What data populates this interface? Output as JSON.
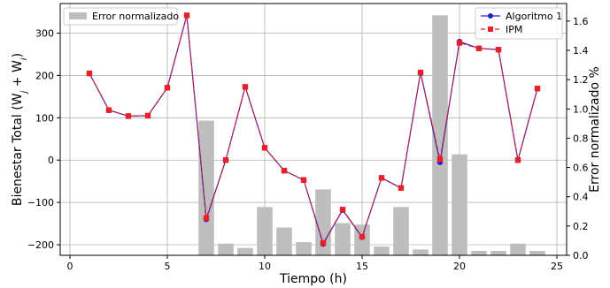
{
  "chart_data": {
    "type": "bar+line",
    "xlabel": "Tiempo (h)",
    "ylabel_left": "Bienestar Total (W_j + W_i)",
    "ylabel_right": "Error normalizado %",
    "xlim": [
      -0.5,
      25.5
    ],
    "ylim_left": [
      -225,
      370
    ],
    "ylim_right": [
      0,
      1.72
    ],
    "xticks": [
      0,
      5,
      10,
      15,
      20,
      25
    ],
    "yticks_left": [
      -200,
      -100,
      0,
      100,
      200,
      300
    ],
    "yticks_right": [
      0.0,
      0.2,
      0.4,
      0.6,
      0.8,
      1.0,
      1.2,
      1.4,
      1.6
    ],
    "grid": true,
    "bar_series": {
      "name": "Error normalizado",
      "color": "#bebebe",
      "x": [
        1,
        2,
        3,
        4,
        5,
        6,
        7,
        8,
        9,
        10,
        11,
        12,
        13,
        14,
        15,
        16,
        17,
        18,
        19,
        20,
        21,
        22,
        23,
        24
      ],
      "values": [
        0.0,
        0.0,
        0.0,
        0.0,
        0.0,
        0.0,
        0.92,
        0.08,
        0.05,
        0.33,
        0.19,
        0.09,
        0.45,
        0.22,
        0.21,
        0.06,
        0.33,
        0.04,
        1.64,
        0.69,
        0.03,
        0.03,
        0.08,
        0.03
      ]
    },
    "line_series": [
      {
        "name": "Algoritmo 1",
        "color": "#1f1fcf",
        "marker": "circle",
        "x": [
          1,
          2,
          3,
          4,
          5,
          6,
          7,
          8,
          9,
          10,
          11,
          12,
          13,
          14,
          15,
          16,
          17,
          18,
          19,
          20,
          21,
          22,
          23,
          24
        ],
        "values": [
          205,
          118,
          104,
          105,
          171,
          342,
          -140,
          0,
          173,
          29,
          -25,
          -47,
          -198,
          -118,
          -182,
          -42,
          -66,
          207,
          -5,
          280,
          264,
          261,
          0,
          169
        ]
      },
      {
        "name": "IPM",
        "color": "#e8202a",
        "marker": "square",
        "x": [
          1,
          2,
          3,
          4,
          5,
          6,
          7,
          8,
          9,
          10,
          11,
          12,
          13,
          14,
          15,
          16,
          17,
          18,
          19,
          20,
          21,
          22,
          23,
          24
        ],
        "values": [
          205,
          118,
          104,
          105,
          171,
          342,
          -137,
          0,
          173,
          29,
          -25,
          -47,
          -196,
          -117,
          -181,
          -42,
          -66,
          207,
          2,
          277,
          264,
          261,
          0,
          169
        ]
      }
    ],
    "legend_left": {
      "placement": "upper-left",
      "entries": [
        "Error normalizado"
      ]
    },
    "legend_right": {
      "placement": "upper-right",
      "entries": [
        "Algoritmo 1",
        "IPM"
      ]
    }
  }
}
